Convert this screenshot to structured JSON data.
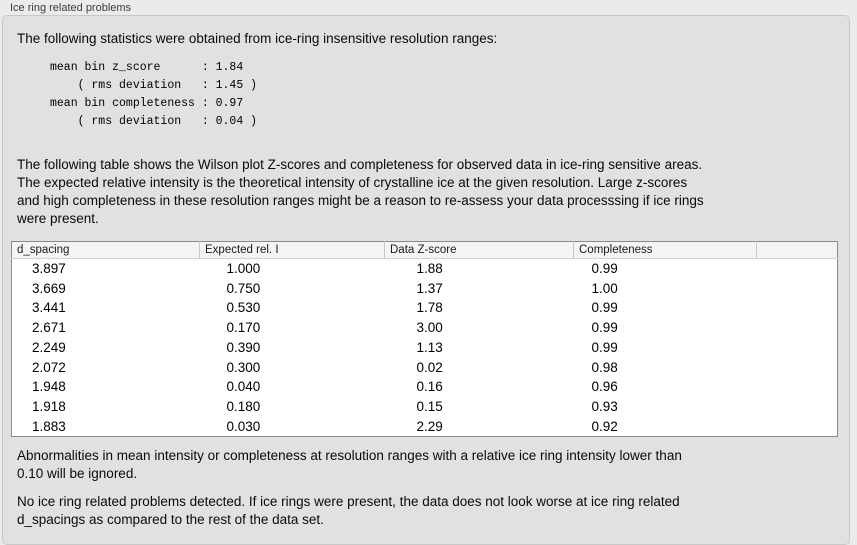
{
  "panel": {
    "title": "Ice ring related problems",
    "intro": "The following statistics were obtained from ice-ring insensitive resolution ranges:",
    "stats_block": "mean bin z_score      : 1.84\n    ( rms deviation   : 1.45 )\nmean bin completeness : 0.97\n    ( rms deviation   : 0.04 )",
    "table_description": "The following table shows the Wilson plot Z-scores and completeness for observed data in ice-ring sensitive areas.\nThe expected relative intensity is the theoretical intensity of crystalline ice at the given resolution. Large z-scores\nand high completeness in these resolution ranges might be a reason to re-assess your data processsing if ice rings\nwere present.",
    "ignore_note": "Abnormalities in mean intensity or completeness at resolution ranges with a relative ice ring intensity lower than\n0.10 will be ignored.",
    "conclusion": "No ice ring related problems detected. If ice rings were present, the data does not look worse at ice ring related\nd_spacings as compared to the rest of the data set."
  },
  "table": {
    "columns": [
      "d_spacing",
      "Expected rel. I",
      "Data Z-score",
      "Completeness",
      ""
    ],
    "rows": [
      [
        "3.897",
        "1.000",
        "1.88",
        "0.99"
      ],
      [
        "3.669",
        "0.750",
        "1.37",
        "1.00"
      ],
      [
        "3.441",
        "0.530",
        "1.78",
        "0.99"
      ],
      [
        "2.671",
        "0.170",
        "3.00",
        "0.99"
      ],
      [
        "2.249",
        "0.390",
        "1.13",
        "0.99"
      ],
      [
        "2.072",
        "0.300",
        "0.02",
        "0.98"
      ],
      [
        "1.948",
        "0.040",
        "0.16",
        "0.96"
      ],
      [
        "1.918",
        "0.180",
        "0.15",
        "0.93"
      ],
      [
        "1.883",
        "0.030",
        "2.29",
        "0.92"
      ]
    ]
  },
  "colors": {
    "window_background": "#ebebeb",
    "panel_background": "#e1e1e1",
    "panel_border": "#c8c8c8",
    "table_border": "#8a8a8a",
    "table_header_background": "#f4f4f4",
    "table_body_background": "#ffffff",
    "text": "#0a0a0a"
  }
}
